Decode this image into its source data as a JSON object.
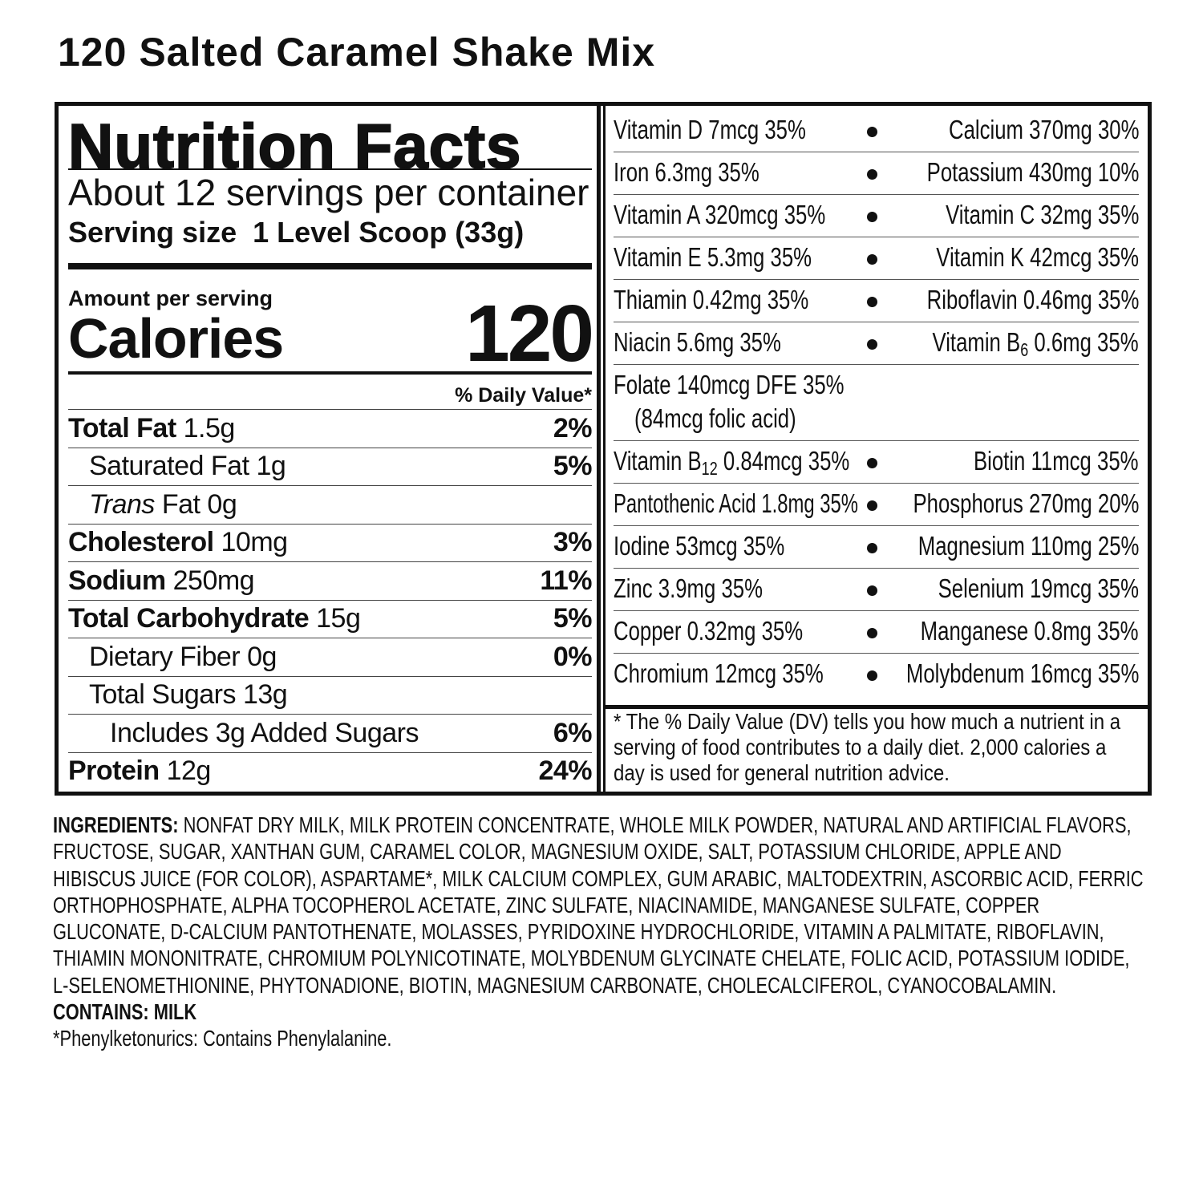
{
  "title": "120 Salted Caramel Shake Mix",
  "facts": {
    "heading": "Nutrition Facts",
    "servings": "About 12 servings per container",
    "serving_size_label": "Serving size",
    "serving_size": "1 Level Scoop (33g)",
    "amount_per_serving": "Amount per serving",
    "calories_label": "Calories",
    "calories": "120",
    "dv_header": "% Daily Value*",
    "nutrients": [
      {
        "name": "Total Fat",
        "amount": "1.5g",
        "dv": "2%"
      },
      {
        "name": "Saturated Fat",
        "amount": "1g",
        "dv": "5%"
      },
      {
        "prefix": "Trans",
        "name": "Fat",
        "amount": "0g"
      },
      {
        "name": "Cholesterol",
        "amount": "10mg",
        "dv": "3%"
      },
      {
        "name": "Sodium",
        "amount": "250mg",
        "dv": "11%"
      },
      {
        "name": "Total Carbohydrate",
        "amount": "15g",
        "dv": "5%"
      },
      {
        "name": "Dietary Fiber",
        "amount": "0g",
        "dv": "0%"
      },
      {
        "name": "Total Sugars",
        "amount": "13g"
      },
      {
        "name": "Includes 3g Added Sugars",
        "dv": "6%"
      },
      {
        "name": "Protein",
        "amount": "12g",
        "dv": "24%"
      }
    ]
  },
  "vitamins": [
    {
      "left": "Vitamin D 7mcg 35%",
      "right": "Calcium 370mg 30%"
    },
    {
      "left": "Iron 6.3mg 35%",
      "right": "Potassium 430mg 10%"
    },
    {
      "left": "Vitamin A 320mcg 35%",
      "right": "Vitamin C 32mg 35%"
    },
    {
      "left": "Vitamin E 5.3mg 35%",
      "right": "Vitamin K 42mcg 35%"
    },
    {
      "left": "Thiamin 0.42mg 35%",
      "right": "Riboflavin 0.46mg 35%"
    },
    {
      "left": "Niacin 5.6mg 35%",
      "right": {
        "name": "Vitamin B",
        "sub": "6",
        "rest": "0.6mg 35%"
      }
    },
    {
      "left": "Folate 140mcg DFE 35%",
      "note": "(84mcg folic acid)"
    },
    {
      "left": {
        "name": "Vitamin B",
        "sub": "12",
        "rest": "0.84mcg 35%"
      },
      "right": "Biotin 11mcg 35%"
    },
    {
      "left": "Pantothenic Acid 1.8mg 35%",
      "right": "Phosphorus 270mg 20%"
    },
    {
      "left": "Iodine 53mcg 35%",
      "right": "Magnesium 110mg 25%"
    },
    {
      "left": "Zinc 3.9mg 35%",
      "right": "Selenium 19mcg 35%"
    },
    {
      "left": "Copper 0.32mg 35%",
      "right": "Manganese 0.8mg 35%"
    },
    {
      "left": "Chromium 12mcg 35%",
      "right": "Molybdenum 16mcg 35%"
    }
  ],
  "footnote": "* The % Daily Value (DV) tells you how much a nutrient in a serving of food contributes to a daily diet. 2,000 calories a day is used for general nutrition advice.",
  "ingredients": {
    "label": "INGREDIENTS:",
    "text": "NONFAT DRY MILK, MILK PROTEIN CONCENTRATE, WHOLE MILK POWDER, NATURAL AND ARTIFICIAL FLAVORS, FRUCTOSE, SUGAR, XANTHAN GUM, CARAMEL COLOR, MAGNESIUM OXIDE, SALT, POTASSIUM CHLORIDE, APPLE AND HIBISCUS JUICE (FOR COLOR), ASPARTAME*, MILK CALCIUM COMPLEX, GUM ARABIC, MALTODEXTRIN, ASCORBIC ACID, FERRIC ORTHOPHOSPHATE, ALPHA TOCOPHEROL ACETATE, ZINC SULFATE, NIACINAMIDE, MANGANESE SULFATE, COPPER GLUCONATE, D-CALCIUM PANTOTHENATE, MOLASSES, PYRIDOXINE HYDROCHLORIDE, VITAMIN A PALMITATE, RIBOFLAVIN, THIAMIN MONONITRATE, CHROMIUM POLYNICOTINATE, MOLYBDENUM GLYCINATE CHELATE, FOLIC ACID, POTASSIUM IODIDE, L-SELENOMETHIONINE, PHYTONADIONE, BIOTIN, MAGNESIUM CARBONATE, CHOLECALCIFEROL, CYANOCOBALAMIN."
  },
  "contains": {
    "label": "CONTAINS:",
    "text": "MILK"
  },
  "pku_note": "*Phenylketonurics: Contains Phenylalanine."
}
